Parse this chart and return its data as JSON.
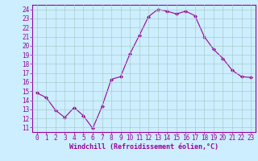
{
  "x": [
    0,
    1,
    2,
    3,
    4,
    5,
    6,
    7,
    8,
    9,
    10,
    11,
    12,
    13,
    14,
    15,
    16,
    17,
    18,
    19,
    20,
    21,
    22,
    23
  ],
  "y": [
    14.8,
    14.3,
    12.9,
    12.1,
    13.2,
    12.3,
    10.9,
    13.3,
    16.3,
    16.6,
    19.1,
    21.1,
    23.2,
    24.0,
    23.8,
    23.5,
    23.8,
    23.3,
    21.0,
    19.6,
    18.6,
    17.3,
    16.6,
    16.5
  ],
  "line_color": "#990099",
  "marker": "D",
  "marker_size": 2.0,
  "bg_color": "#cceeff",
  "grid_color": "#aacccc",
  "xlabel": "Windchill (Refroidissement éolien,°C)",
  "xlabel_color": "#990099",
  "tick_color": "#990099",
  "label_fontsize": 5.5,
  "xlabel_fontsize": 6.0,
  "ylim": [
    10.5,
    24.5
  ],
  "yticks": [
    11,
    12,
    13,
    14,
    15,
    16,
    17,
    18,
    19,
    20,
    21,
    22,
    23,
    24
  ],
  "xlim": [
    -0.5,
    23.5
  ],
  "xticks": [
    0,
    1,
    2,
    3,
    4,
    5,
    6,
    7,
    8,
    9,
    10,
    11,
    12,
    13,
    14,
    15,
    16,
    17,
    18,
    19,
    20,
    21,
    22,
    23
  ]
}
